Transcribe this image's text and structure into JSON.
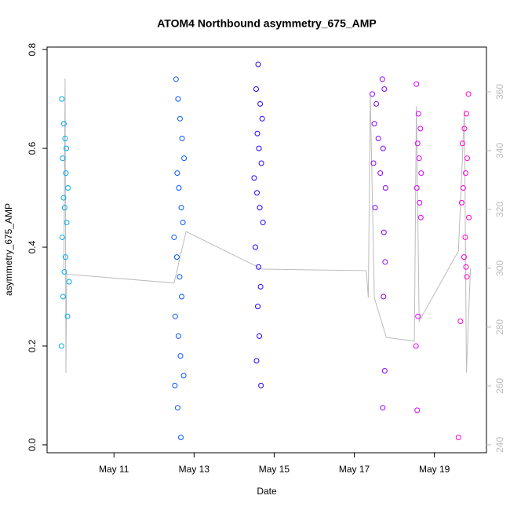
{
  "chart_data": {
    "type": "scatter",
    "title": "ATOM4 Northbound asymmetry_675_AMP",
    "xlabel": "Date",
    "ylabel": "asymmetry_675_AMP",
    "xlim": [
      9.33,
      20.3
    ],
    "ylim": [
      -0.016,
      0.805
    ],
    "y2lim": [
      237.3,
      375.2
    ],
    "xticks": [
      {
        "value": 11,
        "label": "May 11"
      },
      {
        "value": 13,
        "label": "May 13"
      },
      {
        "value": 15,
        "label": "May 15"
      },
      {
        "value": 17,
        "label": "May 17"
      },
      {
        "value": 19,
        "label": "May 19"
      }
    ],
    "yticks": [
      {
        "value": 0,
        "label": "0.0"
      },
      0.2,
      0.4,
      0.6,
      0.8
    ],
    "y2ticks": [
      240,
      260,
      280,
      300,
      320,
      340,
      360
    ],
    "series": [
      {
        "color": "#bbbbbb",
        "axis": "y2",
        "x": [
          9.75,
          9.78,
          9.8,
          9.82,
          12.5,
          12.8,
          14.7,
          17.3,
          17.35,
          17.4,
          17.5,
          17.8,
          18.5,
          18.55,
          18.62,
          19.6,
          19.75,
          19.8,
          19.9
        ],
        "values": [
          300,
          364.5,
          264.5,
          298,
          295,
          312.5,
          299.7,
          299.2,
          290,
          359,
          290,
          276.5,
          275.2,
          355,
          282,
          305.9,
          353.9,
          264.5,
          300
        ]
      },
      {
        "color": "#00a8f0",
        "x": [
          9.7,
          9.75,
          9.78,
          9.72,
          9.8,
          9.85,
          9.74,
          9.77,
          9.82,
          9.71,
          9.79,
          9.76,
          9.73,
          9.84,
          9.88,
          9.69,
          9.81
        ],
        "values": [
          0.7,
          0.65,
          0.62,
          0.58,
          0.55,
          0.52,
          0.5,
          0.48,
          0.45,
          0.42,
          0.38,
          0.35,
          0.3,
          0.26,
          0.33,
          0.2,
          0.6
        ]
      },
      {
        "color": "#0055ff",
        "x": [
          12.55,
          12.6,
          12.65,
          12.7,
          12.75,
          12.58,
          12.62,
          12.68,
          12.72,
          12.5,
          12.57,
          12.64,
          12.69,
          12.53,
          12.61,
          12.66,
          12.74,
          12.52,
          12.59,
          12.67
        ],
        "values": [
          0.74,
          0.7,
          0.66,
          0.62,
          0.58,
          0.55,
          0.52,
          0.48,
          0.45,
          0.42,
          0.38,
          0.34,
          0.3,
          0.26,
          0.22,
          0.18,
          0.14,
          0.12,
          0.075,
          0.015
        ]
      },
      {
        "color": "#2200ff",
        "x": [
          14.6,
          14.55,
          14.65,
          14.7,
          14.58,
          14.62,
          14.68,
          14.5,
          14.57,
          14.64,
          14.72,
          14.53,
          14.61,
          14.66,
          14.59,
          14.63,
          14.56,
          14.67
        ],
        "values": [
          0.77,
          0.72,
          0.69,
          0.66,
          0.63,
          0.6,
          0.57,
          0.54,
          0.51,
          0.48,
          0.45,
          0.4,
          0.36,
          0.32,
          0.28,
          0.22,
          0.17,
          0.12
        ]
      },
      {
        "color": "#8a00ff",
        "x": [
          17.45,
          17.55,
          17.7,
          17.75,
          17.5,
          17.6,
          17.72,
          17.48,
          17.65,
          17.78,
          17.52,
          17.74,
          17.77,
          17.73,
          17.76,
          17.71
        ],
        "values": [
          0.71,
          0.69,
          0.74,
          0.72,
          0.65,
          0.62,
          0.6,
          0.57,
          0.55,
          0.52,
          0.48,
          0.43,
          0.37,
          0.3,
          0.15,
          0.075
        ]
      },
      {
        "color": "#dd00ff",
        "x": [
          18.55,
          18.6,
          18.65,
          18.58,
          18.62,
          18.67,
          18.56,
          18.63,
          18.59,
          18.66,
          18.54,
          18.57
        ],
        "values": [
          0.73,
          0.67,
          0.64,
          0.61,
          0.58,
          0.55,
          0.52,
          0.49,
          0.26,
          0.46,
          0.2,
          0.07
        ]
      },
      {
        "color": "#ff00cc",
        "x": [
          19.85,
          19.8,
          19.75,
          19.7,
          19.82,
          19.78,
          19.72,
          19.68,
          19.86,
          19.77,
          19.74,
          19.81,
          19.65,
          19.6,
          19.79
        ],
        "values": [
          0.71,
          0.67,
          0.64,
          0.61,
          0.58,
          0.55,
          0.52,
          0.49,
          0.46,
          0.42,
          0.38,
          0.34,
          0.25,
          0.015,
          0.36
        ]
      }
    ]
  }
}
